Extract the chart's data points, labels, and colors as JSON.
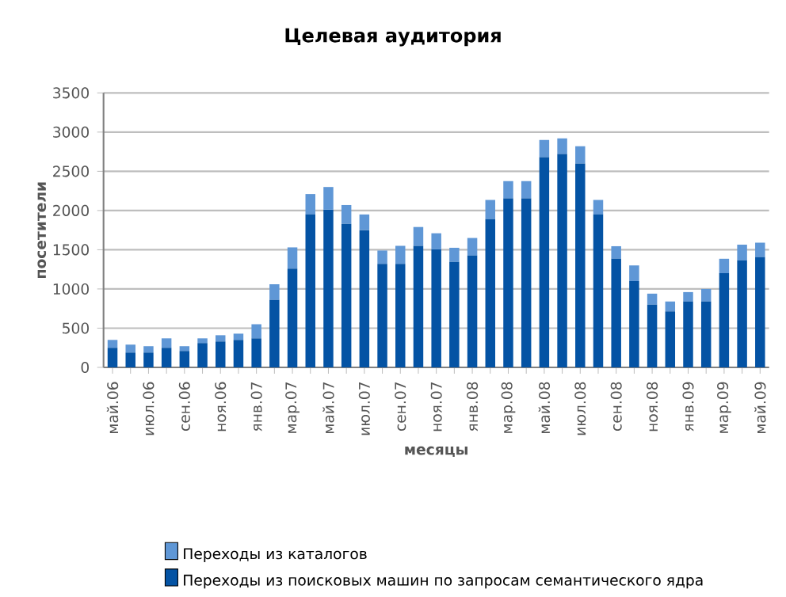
{
  "chart_data": {
    "type": "bar",
    "title": "Целевая аудитория",
    "xlabel": "месяцы",
    "ylabel": "посетители",
    "stacked": true,
    "grid": "y",
    "legend": "bottom",
    "categories": [
      "май.06",
      null,
      "июл.06",
      null,
      "сен.06",
      null,
      "ноя.06",
      null,
      "янв.07",
      null,
      "мар.07",
      null,
      "май.07",
      null,
      "июл.07",
      null,
      "сен.07",
      null,
      "ноя.07",
      null,
      "янв.08",
      null,
      "мар.08",
      null,
      "май.08",
      null,
      "июл.08",
      null,
      "сен.08",
      null,
      "ноя.08",
      null,
      "янв.09",
      null,
      "мар.09",
      null,
      "май.09"
    ],
    "ylim": [
      0,
      3500
    ],
    "yticks": [
      0,
      500,
      1000,
      1500,
      2000,
      2500,
      3000,
      3500
    ],
    "series": [
      {
        "name": "Переходы из поисковых машин по запросам семантического ядра",
        "color": "#0453a4",
        "values": [
          250,
          190,
          190,
          250,
          210,
          310,
          330,
          350,
          370,
          860,
          1260,
          1950,
          2010,
          1830,
          1750,
          1320,
          1320,
          1550,
          1505,
          1345,
          1425,
          1890,
          2155,
          2155,
          2680,
          2720,
          2600,
          1950,
          1385,
          1100,
          800,
          715,
          840,
          840,
          1200,
          1365,
          1405
        ]
      },
      {
        "name": "Переходы из каталогов",
        "color": "#5f97d6",
        "values": [
          100,
          100,
          80,
          120,
          60,
          60,
          80,
          80,
          180,
          200,
          270,
          260,
          290,
          240,
          200,
          170,
          230,
          240,
          205,
          180,
          225,
          245,
          220,
          220,
          220,
          200,
          220,
          185,
          160,
          200,
          140,
          125,
          120,
          160,
          185,
          200,
          185
        ]
      }
    ]
  }
}
